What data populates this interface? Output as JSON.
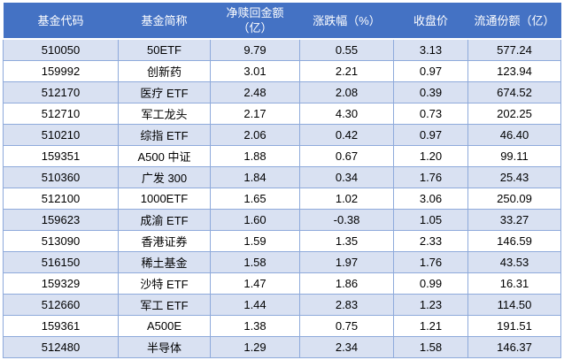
{
  "colors": {
    "header_bg": "#4472C4",
    "header_text": "#FFFFFF",
    "band_row_bg": "#D9E1F2",
    "plain_row_bg": "#FFFFFF",
    "grid_border": "#8EAADB",
    "cell_text": "#000000"
  },
  "table": {
    "headers": [
      "基金代码",
      "基金简称",
      "净赎回金额（亿）",
      "涨跌幅（%）",
      "收盘价",
      "流通份额（亿）"
    ],
    "column_keys": [
      "fund-code",
      "fund-name",
      "net-redemption-amount",
      "change-percent",
      "close-price",
      "float-shares"
    ],
    "rows": [
      [
        "510050",
        "50ETF",
        "9.79",
        "0.55",
        "3.13",
        "577.24"
      ],
      [
        "159992",
        "创新药",
        "3.01",
        "2.21",
        "0.97",
        "123.94"
      ],
      [
        "512170",
        "医疗 ETF",
        "2.48",
        "2.08",
        "0.39",
        "674.52"
      ],
      [
        "512710",
        "军工龙头",
        "2.17",
        "4.30",
        "0.73",
        "202.25"
      ],
      [
        "510210",
        "综指 ETF",
        "2.06",
        "0.42",
        "0.97",
        "46.40"
      ],
      [
        "159351",
        "A500 中证",
        "1.88",
        "0.67",
        "1.20",
        "99.11"
      ],
      [
        "510360",
        "广发 300",
        "1.84",
        "0.34",
        "1.76",
        "25.43"
      ],
      [
        "512100",
        "1000ETF",
        "1.65",
        "1.02",
        "3.06",
        "250.09"
      ],
      [
        "159623",
        "成渝 ETF",
        "1.60",
        "-0.38",
        "1.05",
        "33.27"
      ],
      [
        "513090",
        "香港证券",
        "1.59",
        "1.35",
        "2.33",
        "146.59"
      ],
      [
        "516150",
        "稀土基金",
        "1.58",
        "1.97",
        "1.76",
        "43.53"
      ],
      [
        "159329",
        "沙特 ETF",
        "1.47",
        "1.86",
        "0.99",
        "16.31"
      ],
      [
        "512660",
        "军工 ETF",
        "1.44",
        "2.83",
        "1.23",
        "114.50"
      ],
      [
        "159361",
        "A500E",
        "1.38",
        "0.75",
        "1.21",
        "191.51"
      ],
      [
        "512480",
        "半导体",
        "1.29",
        "2.34",
        "1.58",
        "146.37"
      ]
    ]
  }
}
